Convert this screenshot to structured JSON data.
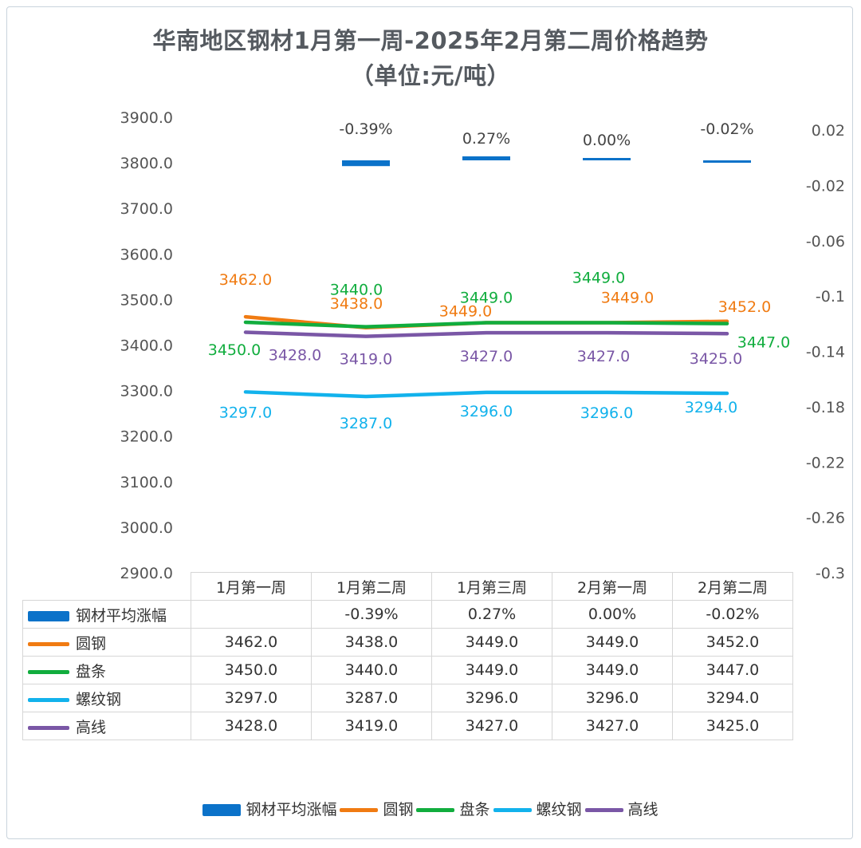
{
  "title": "华南地区钢材1月第一周-2025年2月第二周价格趋势",
  "subtitle": "（单位:元/吨）",
  "chart_data": {
    "type": "line",
    "categories": [
      "1月第一周",
      "1月第二周",
      "1月第三周",
      "2月第一周",
      "2月第二周"
    ],
    "left_axis": {
      "ticks": [
        "3900.0",
        "3800.0",
        "3700.0",
        "3600.0",
        "3500.0",
        "3400.0",
        "3300.0",
        "3200.0",
        "3100.0",
        "3000.0",
        "2900.0"
      ],
      "ylim": [
        2900,
        3900
      ]
    },
    "right_axis": {
      "ticks": [
        "0.02",
        "-0.02",
        "-0.06",
        "-0.1",
        "-0.14",
        "-0.18",
        "-0.22",
        "-0.26",
        "-0.3"
      ],
      "ylim": [
        -0.3,
        0.02
      ]
    },
    "bar_series": {
      "name": "钢材平均涨幅",
      "color": "#0b72c9",
      "values": [
        null,
        -0.39,
        0.27,
        0.0,
        -0.02
      ],
      "labels": [
        "",
        "-0.39%",
        "0.27%",
        "0.00%",
        "-0.02%"
      ]
    },
    "series": [
      {
        "name": "圆钢",
        "color": "#f07b12",
        "values": [
          3462,
          3438,
          3449,
          3449,
          3452
        ],
        "labels": [
          "3462.0",
          "3438.0",
          "3449.0",
          "3449.0",
          "3452.0"
        ]
      },
      {
        "name": "盘条",
        "color": "#11ad3e",
        "values": [
          3450,
          3440,
          3449,
          3449,
          3447
        ],
        "labels": [
          "3450.0",
          "3440.0",
          "3449.0",
          "3449.0",
          "3447.0"
        ]
      },
      {
        "name": "螺纹钢",
        "color": "#12b2ec",
        "values": [
          3297,
          3287,
          3296,
          3296,
          3294
        ],
        "labels": [
          "3297.0",
          "3287.0",
          "3296.0",
          "3296.0",
          "3294.0"
        ]
      },
      {
        "name": "高线",
        "color": "#7a57a6",
        "values": [
          3428,
          3419,
          3427,
          3427,
          3425
        ],
        "labels": [
          "3428.0",
          "3419.0",
          "3427.0",
          "3427.0",
          "3425.0"
        ]
      }
    ],
    "legend_position": "bottom",
    "grid": false
  }
}
